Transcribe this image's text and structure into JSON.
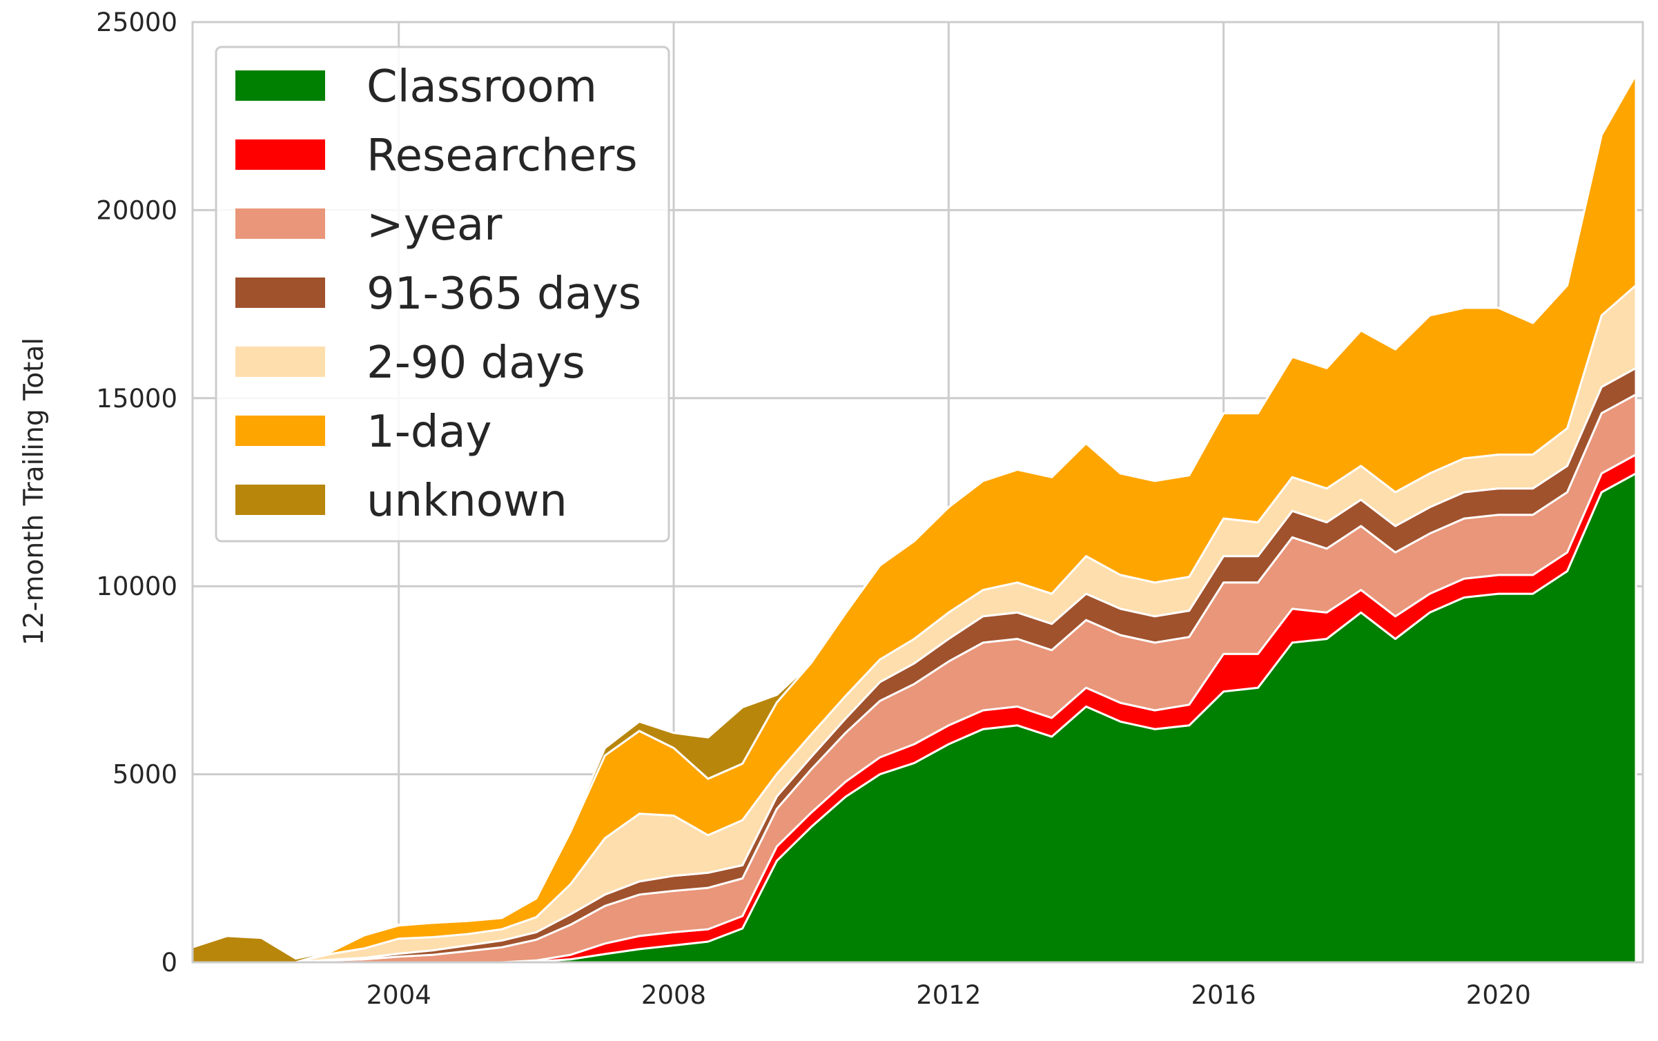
{
  "chart_data": {
    "type": "area",
    "stacked": true,
    "title": "",
    "xlabel": "",
    "ylabel": "12-month Trailing Total",
    "xlim": [
      2001.0,
      2022.1
    ],
    "ylim": [
      0,
      25000
    ],
    "x_ticks": [
      2004,
      2008,
      2012,
      2016,
      2020
    ],
    "y_ticks": [
      0,
      5000,
      10000,
      15000,
      20000,
      25000
    ],
    "grid": true,
    "legend_position": "top-left",
    "x": [
      2001.0,
      2001.5,
      2002.0,
      2002.5,
      2003.0,
      2003.5,
      2004.0,
      2004.5,
      2005.0,
      2005.5,
      2006.0,
      2006.5,
      2007.0,
      2007.5,
      2008.0,
      2008.5,
      2009.0,
      2009.5,
      2010.0,
      2010.5,
      2011.0,
      2011.5,
      2012.0,
      2012.5,
      2013.0,
      2013.5,
      2014.0,
      2014.5,
      2015.0,
      2015.5,
      2016.0,
      2016.5,
      2017.0,
      2017.5,
      2018.0,
      2018.5,
      2019.0,
      2019.5,
      2020.0,
      2020.5,
      2021.0,
      2021.5,
      2022.0
    ],
    "series": [
      {
        "name": "Classroom",
        "color": "#008000",
        "values": [
          0,
          0,
          0,
          0,
          0,
          0,
          0,
          0,
          0,
          0,
          20,
          80,
          220,
          350,
          450,
          550,
          900,
          2700,
          3600,
          4400,
          5000,
          5300,
          5800,
          6200,
          6300,
          6000,
          6800,
          6400,
          6200,
          6300,
          7200,
          7300,
          8500,
          8600,
          9300,
          8600,
          9300,
          9700,
          9800,
          9800,
          10400,
          12500,
          13000
        ]
      },
      {
        "name": "Researchers",
        "color": "#ff0000",
        "values": [
          0,
          0,
          0,
          0,
          0,
          0,
          0,
          0,
          0,
          0,
          30,
          120,
          280,
          350,
          350,
          330,
          330,
          380,
          380,
          400,
          450,
          500,
          500,
          500,
          500,
          500,
          500,
          500,
          500,
          550,
          1000,
          900,
          900,
          700,
          600,
          600,
          500,
          500,
          500,
          500,
          500,
          500,
          500
        ]
      },
      {
        "name": ">year",
        "color": "#e9967a",
        "values": [
          0,
          0,
          0,
          0,
          50,
          80,
          150,
          200,
          300,
          400,
          550,
          800,
          1000,
          1100,
          1100,
          1100,
          1000,
          1000,
          1150,
          1300,
          1500,
          1600,
          1700,
          1800,
          1800,
          1800,
          1800,
          1800,
          1800,
          1800,
          1900,
          1900,
          1900,
          1700,
          1700,
          1700,
          1600,
          1600,
          1600,
          1600,
          1600,
          1600,
          1600
        ]
      },
      {
        "name": "91-365 days",
        "color": "#a0522d",
        "values": [
          0,
          0,
          0,
          0,
          20,
          40,
          80,
          120,
          150,
          180,
          200,
          280,
          300,
          350,
          400,
          400,
          350,
          330,
          330,
          380,
          500,
          550,
          600,
          700,
          700,
          700,
          700,
          700,
          700,
          700,
          700,
          700,
          700,
          700,
          700,
          700,
          700,
          700,
          700,
          700,
          700,
          700,
          700
        ]
      },
      {
        "name": "2-90 days",
        "color": "#ffdead",
        "values": [
          0,
          0,
          0,
          0,
          150,
          250,
          400,
          350,
          300,
          300,
          400,
          800,
          1500,
          1800,
          1600,
          1000,
          1200,
          600,
          600,
          600,
          600,
          650,
          700,
          700,
          800,
          800,
          1000,
          900,
          900,
          900,
          1000,
          900,
          900,
          900,
          900,
          900,
          900,
          900,
          900,
          900,
          1000,
          1900,
          2200
        ]
      },
      {
        "name": "1-day",
        "color": "#ffa500",
        "values": [
          0,
          0,
          0,
          0,
          50,
          350,
          350,
          380,
          350,
          300,
          500,
          1400,
          2200,
          2200,
          1800,
          1500,
          1500,
          1900,
          1900,
          2200,
          2500,
          2600,
          2800,
          2900,
          3000,
          3100,
          3000,
          2700,
          2700,
          2700,
          2800,
          2900,
          3200,
          3200,
          3600,
          3800,
          4200,
          4000,
          3900,
          3500,
          3800,
          4800,
          5600
        ]
      },
      {
        "name": "unknown",
        "color": "#b8860b",
        "values": [
          400,
          700,
          650,
          100,
          20,
          20,
          20,
          20,
          20,
          20,
          30,
          80,
          200,
          250,
          400,
          1100,
          1500,
          200,
          0,
          0,
          0,
          0,
          0,
          0,
          0,
          0,
          0,
          0,
          0,
          0,
          0,
          0,
          0,
          0,
          0,
          0,
          0,
          0,
          0,
          0,
          0,
          0,
          0
        ]
      }
    ]
  }
}
